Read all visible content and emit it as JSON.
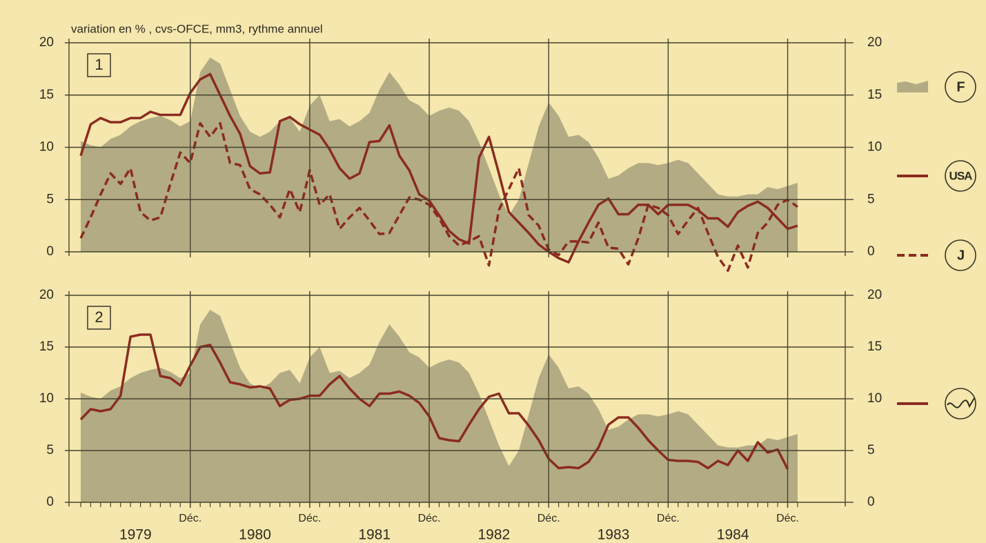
{
  "chart_data": [
    {
      "type": "line",
      "title": "variation en % , cvs-OFCE, mm3, rythme annuel",
      "panel_label": "1",
      "categories": [
        null,
        null,
        null,
        null,
        null,
        null,
        null,
        null,
        null,
        null,
        null,
        null,
        null,
        null,
        null,
        null,
        null,
        null,
        null,
        null,
        null,
        null,
        null,
        null,
        null,
        null,
        null,
        null,
        null,
        null,
        null,
        null,
        null,
        null,
        null,
        null,
        null,
        null,
        null,
        null,
        null,
        null,
        null,
        null,
        null,
        null,
        null,
        null,
        null,
        null,
        null,
        null,
        null,
        null,
        null,
        null,
        null,
        null,
        null,
        null,
        null,
        null,
        null,
        null,
        null,
        null,
        null,
        null,
        null,
        null,
        null,
        null,
        null
      ],
      "series": [
        {
          "name": "F",
          "style": "area",
          "color": "#b3ab84",
          "values": [
            10.6,
            10.2,
            10.0,
            10.8,
            11.2,
            12.0,
            12.5,
            12.8,
            13.0,
            12.6,
            12.0,
            12.5,
            17.2,
            18.6,
            18.0,
            15.5,
            13.0,
            11.5,
            11.0,
            11.5,
            12.5,
            12.8,
            11.5,
            14.0,
            15.0,
            12.5,
            12.7,
            12.0,
            12.5,
            13.3,
            15.5,
            17.2,
            16.0,
            14.5,
            14.0,
            13.0,
            13.5,
            13.8,
            13.5,
            12.5,
            10.5,
            8.0,
            5.5,
            3.5,
            5.0,
            8.5,
            12.0,
            14.3,
            13.0,
            11.0,
            11.2,
            10.5,
            9.0,
            7.0,
            7.3,
            8.0,
            8.5,
            8.5,
            8.3,
            8.5,
            8.8,
            8.5,
            7.5,
            6.5,
            5.5,
            5.3,
            5.3,
            5.5,
            5.5,
            6.2,
            6.0,
            6.3,
            6.6
          ]
        },
        {
          "name": "USA",
          "style": "solid",
          "color": "#8b2b20",
          "values": [
            9.2,
            12.2,
            12.8,
            12.4,
            12.4,
            12.8,
            12.8,
            13.4,
            13.1,
            13.1,
            13.1,
            15.2,
            16.5,
            17.0,
            15.0,
            13.0,
            11.3,
            8.2,
            7.5,
            7.6,
            12.5,
            12.9,
            12.2,
            11.7,
            11.2,
            9.8,
            8.0,
            7.0,
            7.5,
            10.5,
            10.6,
            12.1,
            9.2,
            7.8,
            5.5,
            4.9,
            3.5,
            2.0,
            1.2,
            0.8,
            9.0,
            11.0,
            7.5,
            3.8,
            2.8,
            1.8,
            0.7,
            0.0,
            -0.6,
            -1.0,
            1.0,
            2.8,
            4.5,
            5.1,
            3.6,
            3.6,
            4.5,
            4.5,
            3.6,
            4.5,
            4.5,
            4.5,
            4.0,
            3.2,
            3.2,
            2.4,
            3.8,
            4.4,
            4.8,
            4.2,
            3.2,
            2.2,
            2.5
          ]
        },
        {
          "name": "J",
          "style": "dashed",
          "color": "#8b2b20",
          "values": [
            1.3,
            3.3,
            5.5,
            7.5,
            6.5,
            8.0,
            3.8,
            3.0,
            3.3,
            6.5,
            9.5,
            8.5,
            12.3,
            11.0,
            12.3,
            8.5,
            8.3,
            6.0,
            5.5,
            4.5,
            3.3,
            6.0,
            3.8,
            7.8,
            4.5,
            5.5,
            2.2,
            3.3,
            4.2,
            3.0,
            1.7,
            1.8,
            3.5,
            5.2,
            5.0,
            4.5,
            3.2,
            1.5,
            0.6,
            1.0,
            1.5,
            -1.3,
            4.0,
            6.0,
            8.0,
            3.5,
            2.5,
            0.2,
            -0.3,
            1.0,
            1.0,
            0.9,
            2.8,
            0.4,
            0.3,
            -1.2,
            1.3,
            4.5,
            4.2,
            3.5,
            1.7,
            3.0,
            4.2,
            1.8,
            -0.5,
            -1.8,
            0.6,
            -1.5,
            1.8,
            2.8,
            4.5,
            5.0,
            4.3
          ]
        }
      ],
      "ylim": [
        0,
        20
      ],
      "yticks": [
        0,
        5,
        10,
        15,
        20
      ],
      "y2lim": [
        0,
        20
      ],
      "y2ticks": [
        0,
        5,
        10,
        15,
        20
      ],
      "grid": true
    },
    {
      "type": "line",
      "panel_label": "2",
      "categories": [
        null,
        null,
        null,
        null,
        null,
        null,
        null,
        null,
        null,
        null,
        null,
        "Déc.",
        null,
        null,
        null,
        null,
        null,
        null,
        null,
        null,
        null,
        null,
        null,
        "Déc.",
        null,
        null,
        null,
        null,
        null,
        null,
        null,
        null,
        null,
        null,
        null,
        "Déc.",
        null,
        null,
        null,
        null,
        null,
        null,
        null,
        null,
        null,
        null,
        null,
        "Déc.",
        null,
        null,
        null,
        null,
        null,
        null,
        null,
        null,
        null,
        null,
        null,
        "Déc.",
        null,
        null,
        null,
        null,
        null,
        null,
        null,
        null,
        null,
        null,
        null,
        "Déc.",
        null
      ],
      "x_groups": [
        "1979",
        "1980",
        "1981",
        "1982",
        "1983",
        "1984"
      ],
      "series": [
        {
          "style": "area",
          "color": "#b3ab84",
          "values": [
            10.6,
            10.2,
            10.0,
            10.8,
            11.2,
            12.0,
            12.5,
            12.8,
            13.0,
            12.6,
            12.0,
            12.5,
            17.2,
            18.6,
            18.0,
            15.5,
            13.0,
            11.5,
            11.0,
            11.5,
            12.5,
            12.8,
            11.5,
            14.0,
            15.0,
            12.5,
            12.7,
            12.0,
            12.5,
            13.3,
            15.5,
            17.2,
            16.0,
            14.5,
            14.0,
            13.0,
            13.5,
            13.8,
            13.5,
            12.5,
            10.5,
            8.0,
            5.5,
            3.5,
            5.0,
            8.5,
            12.0,
            14.3,
            13.0,
            11.0,
            11.2,
            10.5,
            9.0,
            7.0,
            7.3,
            8.0,
            8.5,
            8.5,
            8.3,
            8.5,
            8.8,
            8.5,
            7.5,
            6.5,
            5.5,
            5.3,
            5.3,
            5.5,
            5.5,
            6.2,
            6.0,
            6.3,
            6.6
          ]
        },
        {
          "style": "solid",
          "color": "#8b2b20",
          "values": [
            8.0,
            9.0,
            8.8,
            9.0,
            10.3,
            16.0,
            16.2,
            16.2,
            12.2,
            12.0,
            11.3,
            13.2,
            15.0,
            15.2,
            13.5,
            11.6,
            11.4,
            11.1,
            11.2,
            11.0,
            9.3,
            9.9,
            10.0,
            10.3,
            10.3,
            11.4,
            12.2,
            11.0,
            10.0,
            9.3,
            10.5,
            10.5,
            10.7,
            10.3,
            9.6,
            8.3,
            6.2,
            6.0,
            5.9,
            7.5,
            9.0,
            10.2,
            10.5,
            8.6,
            8.6,
            7.4,
            6.0,
            4.2,
            3.3,
            3.4,
            3.3,
            3.9,
            5.3,
            7.5,
            8.2,
            8.2,
            7.2,
            6.0,
            5.0,
            4.1,
            4.0,
            4.0,
            3.9,
            3.3,
            4.0,
            3.6,
            5.0,
            4.0,
            5.8,
            4.8,
            5.1,
            3.2,
            null
          ]
        }
      ],
      "ylim": [
        0,
        20
      ],
      "yticks": [
        0,
        5,
        10,
        15,
        20
      ],
      "y2lim": [
        0,
        20
      ],
      "y2ticks": [
        0,
        5,
        10,
        15,
        20
      ],
      "grid": true
    }
  ]
}
